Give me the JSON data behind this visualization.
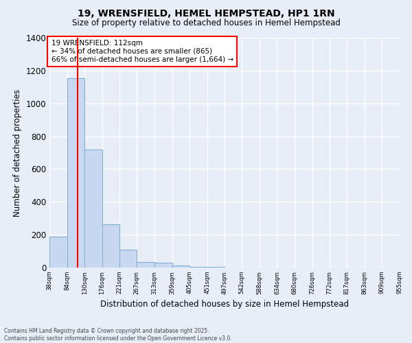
{
  "title": "19, WRENSFIELD, HEMEL HEMPSTEAD, HP1 1RN",
  "subtitle": "Size of property relative to detached houses in Hemel Hempstead",
  "xlabel": "Distribution of detached houses by size in Hemel Hempstead",
  "ylabel": "Number of detached properties",
  "bar_color": "#c8d8f0",
  "bar_edge_color": "#7aaad0",
  "bin_edges": [
    38,
    84,
    130,
    176,
    221,
    267,
    313,
    359,
    405,
    451,
    497,
    542,
    588,
    634,
    680,
    726,
    772,
    817,
    863,
    909,
    955
  ],
  "bar_heights": [
    190,
    1155,
    720,
    265,
    110,
    33,
    30,
    12,
    5,
    3,
    2,
    0,
    0,
    0,
    0,
    0,
    0,
    0,
    0,
    0
  ],
  "red_line_x": 112,
  "annotation_title": "19 WRENSFIELD: 112sqm",
  "annotation_line1": "← 34% of detached houses are smaller (865)",
  "annotation_line2": "66% of semi-detached houses are larger (1,664) →",
  "ylim": [
    0,
    1400
  ],
  "x_tick_labels": [
    "38sqm",
    "84sqm",
    "130sqm",
    "176sqm",
    "221sqm",
    "267sqm",
    "313sqm",
    "359sqm",
    "405sqm",
    "451sqm",
    "497sqm",
    "542sqm",
    "588sqm",
    "634sqm",
    "680sqm",
    "726sqm",
    "772sqm",
    "817sqm",
    "863sqm",
    "909sqm",
    "955sqm"
  ],
  "x_tick_positions": [
    38,
    84,
    130,
    176,
    221,
    267,
    313,
    359,
    405,
    451,
    497,
    542,
    588,
    634,
    680,
    726,
    772,
    817,
    863,
    909,
    955
  ],
  "footer_line1": "Contains HM Land Registry data © Crown copyright and database right 2025.",
  "footer_line2": "Contains public sector information licensed under the Open Government Licence v3.0.",
  "background_color": "#e8eef8",
  "grid_color": "#ffffff"
}
